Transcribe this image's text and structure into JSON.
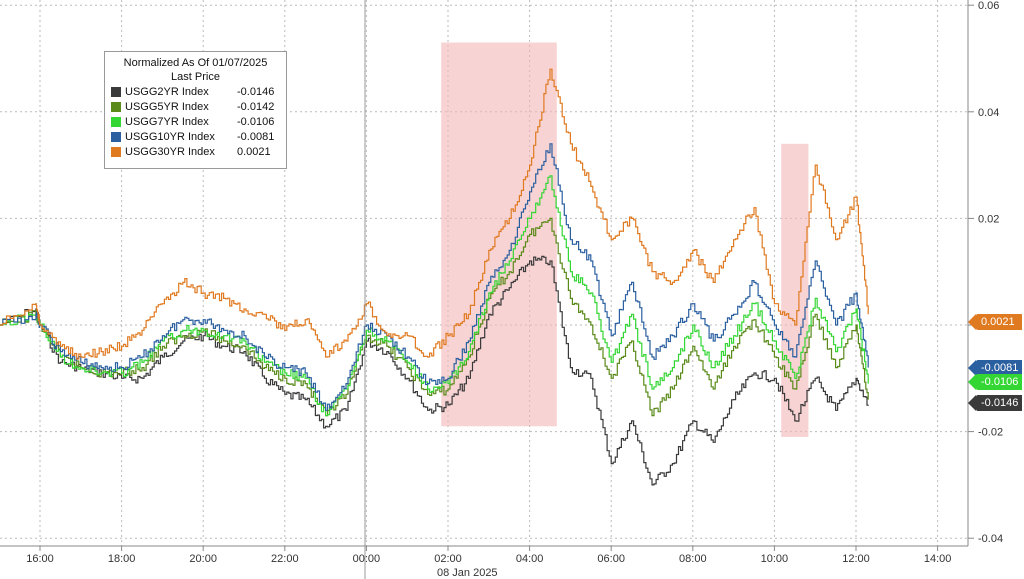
{
  "chart_data": {
    "type": "line",
    "title": "",
    "x_ticks": [
      "16:00",
      "18:00",
      "20:00",
      "22:00",
      "00:00",
      "02:00",
      "04:00",
      "06:00",
      "08:00",
      "10:00",
      "12:00",
      "14:00"
    ],
    "x_date_label": "08 Jan 2025",
    "y_ticks": [
      "0.06",
      "0.04",
      "0.02",
      "0.00",
      "-0.02",
      "-0.04"
    ],
    "ylim": [
      -0.04,
      0.06
    ],
    "grid": true,
    "legend": {
      "header": "Normalized As Of 01/07/2025",
      "subheader": "Last Price",
      "placement": "top-left",
      "entries": [
        {
          "name": "USGG2YR Index",
          "value": "-0.0146",
          "color": "#3a3a3a"
        },
        {
          "name": "USGG5YR Index",
          "value": "-0.0142",
          "color": "#5a8a1a"
        },
        {
          "name": "USGG7YR Index",
          "value": "-0.0106",
          "color": "#33d633"
        },
        {
          "name": "USGG10YR Index",
          "value": "-0.0081",
          "color": "#2a5fa0"
        },
        {
          "name": "USGG30YR Index",
          "value": "0.0021",
          "color": "#e07a20"
        }
      ]
    },
    "shaded_regions": [
      {
        "x_start": "01:50",
        "x_end": "04:40",
        "y_top": 0.053,
        "y_bottom": -0.019
      },
      {
        "x_start": "10:10",
        "x_end": "10:50",
        "y_top": 0.034,
        "y_bottom": -0.021
      }
    ],
    "x_hours": [
      15.0,
      15.9,
      16.0,
      16.5,
      17.0,
      17.5,
      18.0,
      18.5,
      19.0,
      19.5,
      20.0,
      20.5,
      21.0,
      21.5,
      22.0,
      22.5,
      23.0,
      23.5,
      24.0,
      24.5,
      25.0,
      25.5,
      26.0,
      26.5,
      27.0,
      27.5,
      28.0,
      28.5,
      29.0,
      29.5,
      30.0,
      30.5,
      31.0,
      31.5,
      32.0,
      32.5,
      33.0,
      33.5,
      34.0,
      34.5,
      35.0,
      35.5,
      36.0,
      36.3
    ],
    "series": [
      {
        "name": "USGG2YR Index",
        "color": "#3a3a3a",
        "values": [
          0.0,
          0.003,
          0.0,
          -0.007,
          -0.008,
          -0.009,
          -0.01,
          -0.01,
          -0.006,
          -0.003,
          -0.002,
          -0.004,
          -0.005,
          -0.01,
          -0.013,
          -0.014,
          -0.019,
          -0.016,
          -0.003,
          -0.005,
          -0.01,
          -0.016,
          -0.015,
          -0.01,
          0.002,
          0.007,
          0.012,
          0.012,
          -0.008,
          -0.01,
          -0.026,
          -0.018,
          -0.03,
          -0.026,
          -0.018,
          -0.022,
          -0.014,
          -0.009,
          -0.01,
          -0.018,
          -0.01,
          -0.016,
          -0.01,
          -0.015
        ]
      },
      {
        "name": "USGG5YR Index",
        "color": "#5a8a1a",
        "values": [
          0.0,
          0.002,
          0.0,
          -0.006,
          -0.008,
          -0.009,
          -0.009,
          -0.008,
          -0.004,
          -0.002,
          -0.001,
          -0.003,
          -0.004,
          -0.008,
          -0.01,
          -0.011,
          -0.017,
          -0.013,
          -0.002,
          -0.004,
          -0.008,
          -0.013,
          -0.012,
          -0.006,
          0.005,
          0.01,
          0.017,
          0.02,
          0.005,
          0.0,
          -0.01,
          -0.003,
          -0.017,
          -0.012,
          -0.004,
          -0.012,
          -0.004,
          0.001,
          -0.006,
          -0.012,
          0.002,
          -0.008,
          0.0,
          -0.014
        ]
      },
      {
        "name": "USGG7YR Index",
        "color": "#33d633",
        "values": [
          0.0,
          0.002,
          0.0,
          -0.006,
          -0.008,
          -0.009,
          -0.009,
          -0.007,
          -0.003,
          -0.001,
          -0.001,
          -0.002,
          -0.003,
          -0.007,
          -0.009,
          -0.01,
          -0.017,
          -0.012,
          -0.001,
          -0.003,
          -0.007,
          -0.012,
          -0.011,
          -0.005,
          0.006,
          0.012,
          0.02,
          0.028,
          0.01,
          0.006,
          -0.007,
          0.002,
          -0.012,
          -0.008,
          0.0,
          -0.008,
          -0.002,
          0.004,
          -0.003,
          -0.01,
          0.005,
          -0.005,
          0.003,
          -0.011
        ]
      },
      {
        "name": "USGG10YR Index",
        "color": "#2a5fa0",
        "values": [
          0.0,
          0.002,
          0.0,
          -0.005,
          -0.007,
          -0.008,
          -0.008,
          -0.006,
          -0.002,
          0.001,
          0.001,
          -0.001,
          -0.002,
          -0.006,
          -0.008,
          -0.009,
          -0.016,
          -0.011,
          0.0,
          -0.002,
          -0.006,
          -0.011,
          -0.01,
          -0.003,
          0.008,
          0.014,
          0.025,
          0.034,
          0.016,
          0.012,
          -0.002,
          0.008,
          -0.006,
          -0.002,
          0.004,
          -0.003,
          0.002,
          0.008,
          0.0,
          -0.006,
          0.012,
          0.0,
          0.006,
          -0.008
        ]
      },
      {
        "name": "USGG30YR Index",
        "color": "#e07a20",
        "values": [
          0.0,
          0.004,
          0.0,
          -0.004,
          -0.006,
          -0.005,
          -0.004,
          -0.001,
          0.004,
          0.008,
          0.006,
          0.005,
          0.003,
          0.002,
          -0.001,
          0.001,
          -0.006,
          -0.003,
          0.004,
          -0.002,
          -0.002,
          -0.006,
          -0.002,
          0.002,
          0.014,
          0.02,
          0.03,
          0.048,
          0.034,
          0.026,
          0.016,
          0.02,
          0.01,
          0.008,
          0.014,
          0.008,
          0.016,
          0.022,
          0.004,
          0.0,
          0.03,
          0.016,
          0.024,
          0.002
        ]
      }
    ]
  }
}
